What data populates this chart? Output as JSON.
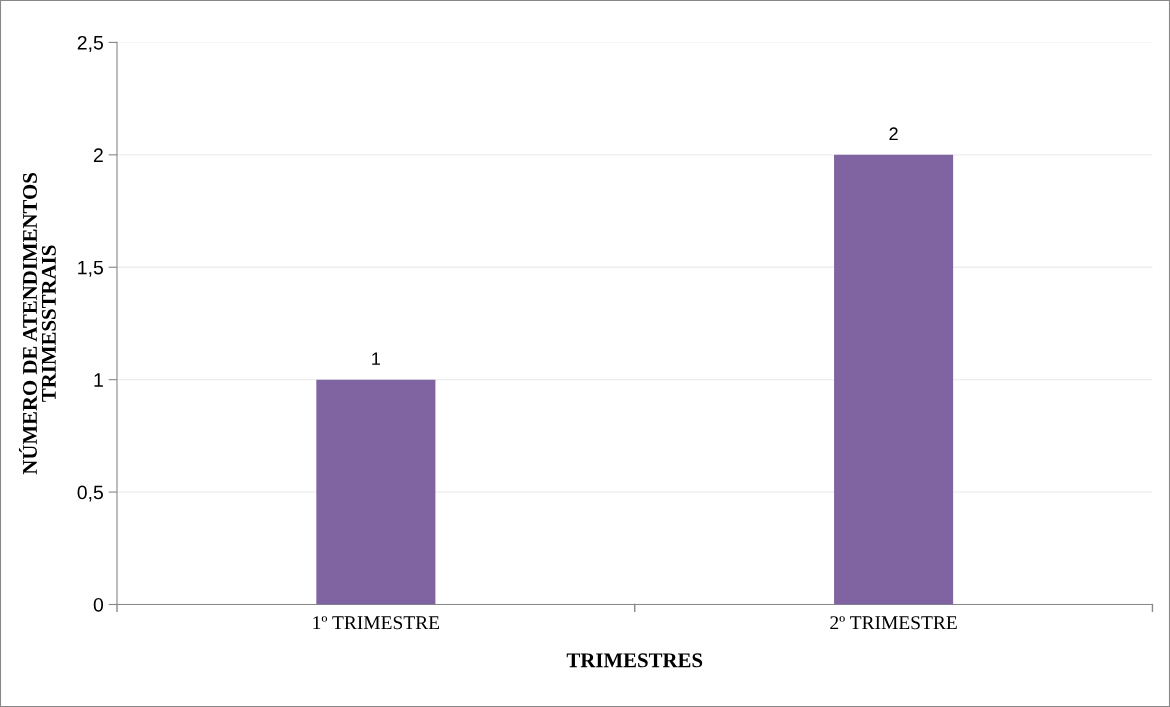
{
  "chart_data": {
    "type": "bar",
    "xlabel": "TRIMESTRES",
    "ylabel": "NÚMERO DE ATENDIMENTOS\nTRIMESSTRAIS",
    "categories": [
      "1º TRIMESTRE",
      "2º TRIMESTRE"
    ],
    "values": [
      1,
      2
    ],
    "color": "#8064a2",
    "ylim": [
      0,
      2.5
    ],
    "yticks": [
      0,
      {
        "value": 0.5,
        "label": "0,5"
      },
      1,
      {
        "value": 1.5,
        "label": "1,5"
      },
      2,
      {
        "value": 2.5,
        "label": "2,5"
      }
    ],
    "grid": "y",
    "data_labels": true
  }
}
